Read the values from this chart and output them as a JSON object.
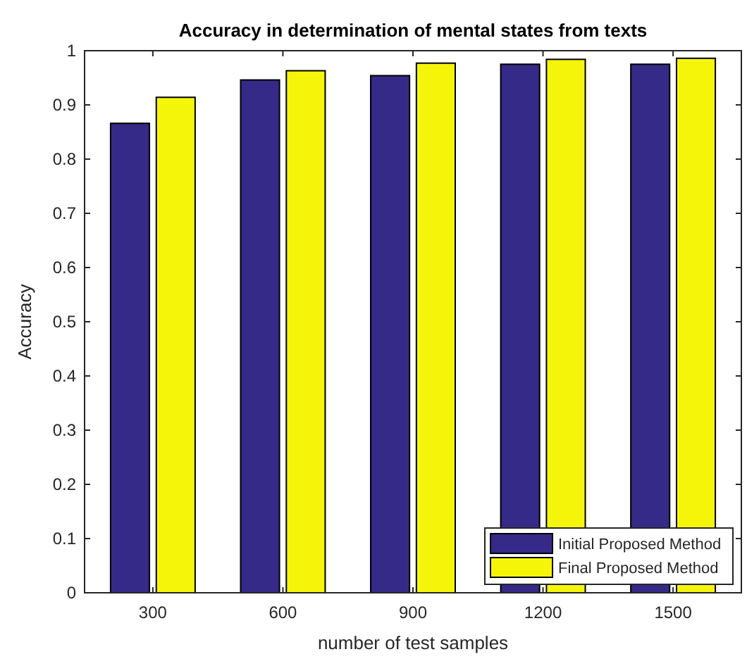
{
  "chart_data": {
    "type": "bar",
    "title": "Accuracy in determination of mental states from texts",
    "xlabel": "number of test samples",
    "ylabel": "Accuracy",
    "categories": [
      "300",
      "600",
      "900",
      "1200",
      "1500"
    ],
    "series": [
      {
        "name": "Initial Proposed Method",
        "color": "#352a87",
        "values": [
          0.866,
          0.946,
          0.954,
          0.975,
          0.975
        ]
      },
      {
        "name": "Final Proposed Method",
        "color": "#f5f50a",
        "values": [
          0.914,
          0.963,
          0.977,
          0.984,
          0.986
        ]
      }
    ],
    "ylim": [
      0,
      1
    ],
    "yticks": [
      0,
      0.1,
      0.2,
      0.3,
      0.4,
      0.5,
      0.6,
      0.7,
      0.8,
      0.9,
      1
    ],
    "grid": false,
    "legend": "bottom right"
  }
}
